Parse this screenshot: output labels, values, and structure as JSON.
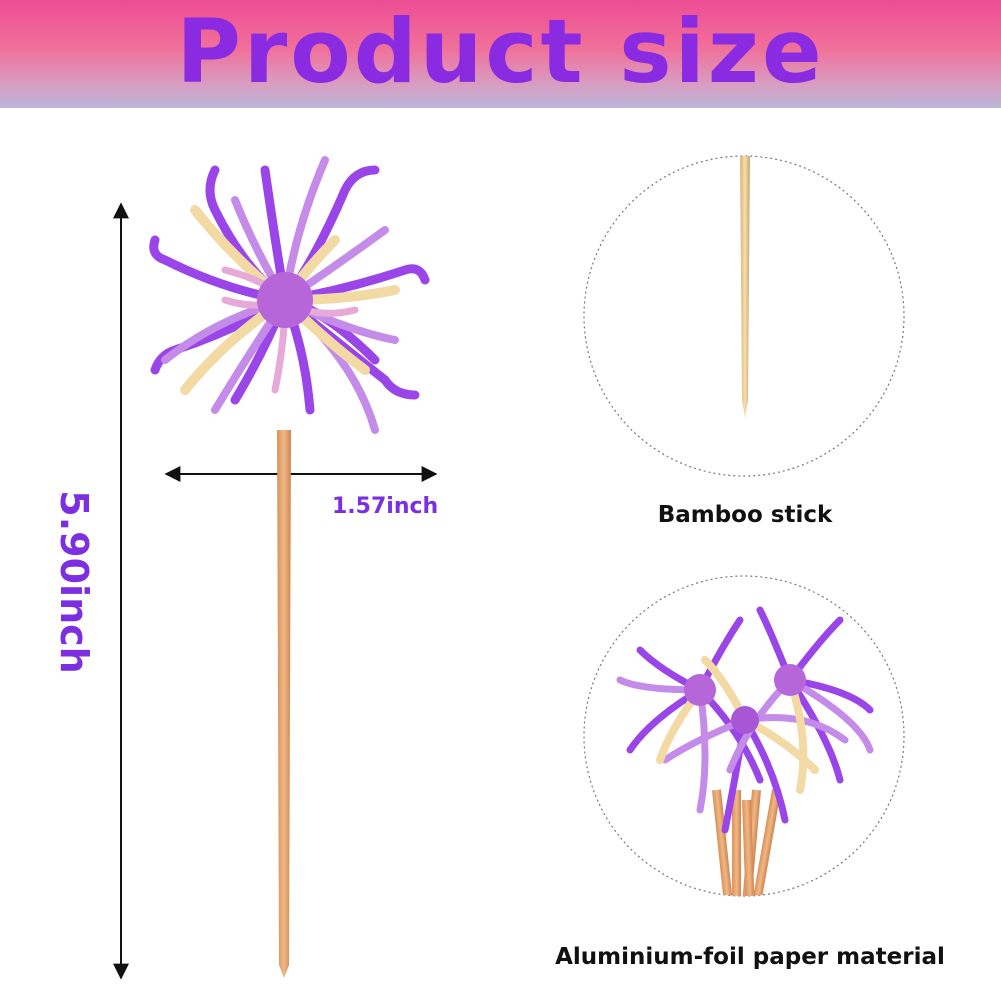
{
  "header": {
    "title": "Product size"
  },
  "dimensions": {
    "height": "5.90inch",
    "width": "1.57inch"
  },
  "details": [
    {
      "caption": "Bamboo stick"
    },
    {
      "caption": "Aluminium-foil paper material"
    }
  ],
  "colors": {
    "accent": "#7b2fe0",
    "banner_top": "#ee4d93",
    "banner_bottom": "#b9b6d8",
    "stick": "#e3a36c"
  }
}
